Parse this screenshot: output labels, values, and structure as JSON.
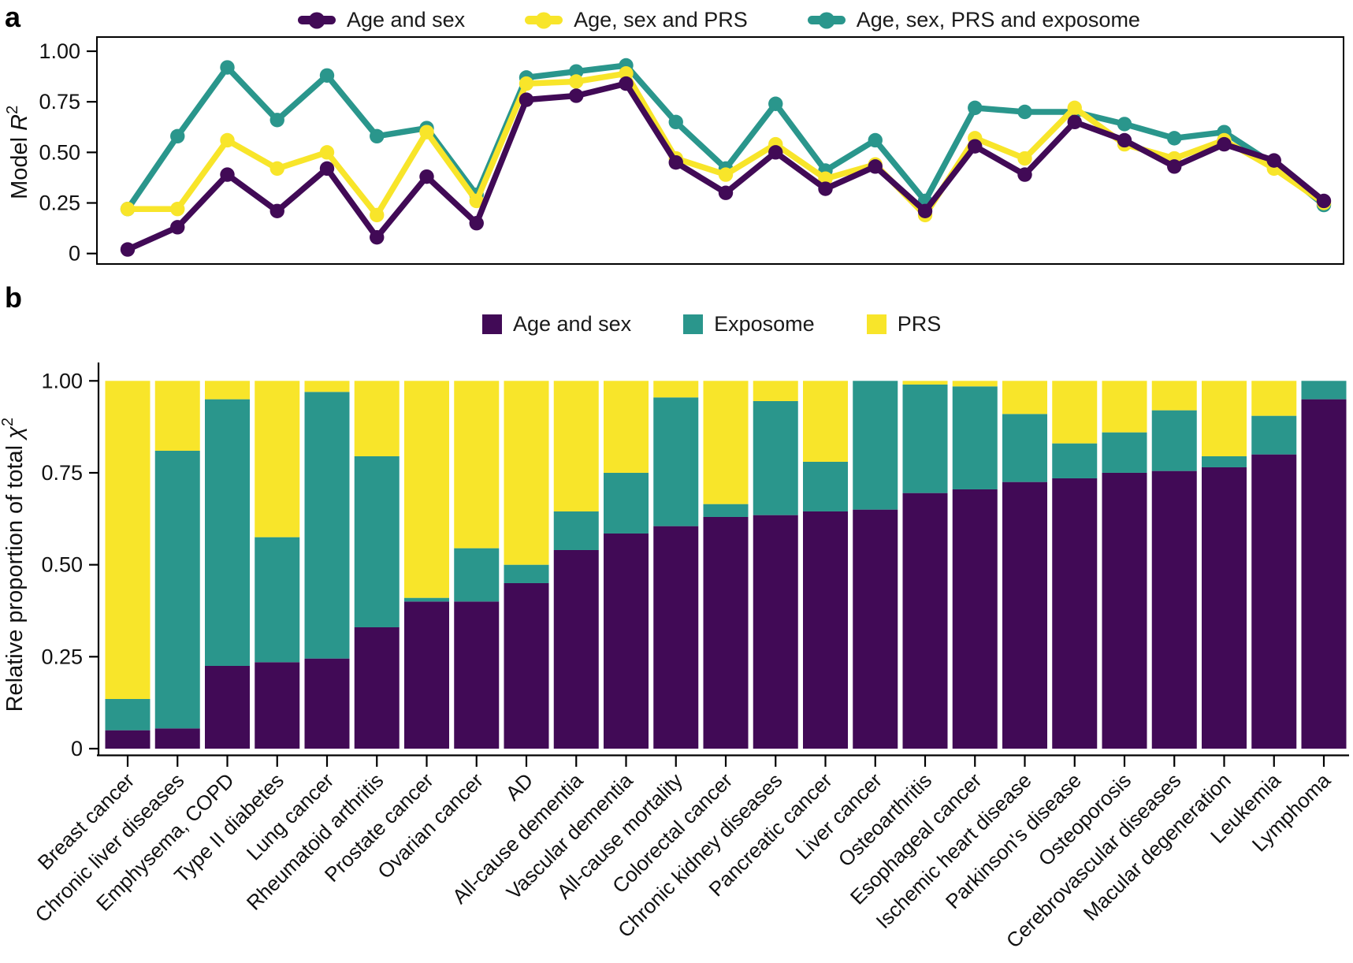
{
  "panels": {
    "a": {
      "letter": "a"
    },
    "b": {
      "letter": "b"
    }
  },
  "colors": {
    "age_sex": "#410a56",
    "exposome": "#2a968c",
    "prs": "#f8e52a",
    "axis": "#000000",
    "text": "#1a1a1a"
  },
  "categories": [
    "Breast cancer",
    "Chronic liver diseases",
    "Emphysema, COPD",
    "Type II diabetes",
    "Lung cancer",
    "Rheumatoid arthritis",
    "Prostate cancer",
    "Ovarian cancer",
    "AD",
    "All-cause dementia",
    "Vascular dementia",
    "All-cause mortality",
    "Colorectal cancer",
    "Chronic kidney diseases",
    "Pancreatic cancer",
    "Liver cancer",
    "Osteoarthritis",
    "Esophageal cancer",
    "Ischemic heart disease",
    "Parkinson's disease",
    "Osteoporosis",
    "Cerebrovascular diseases",
    "Macular degeneration",
    "Leukemia",
    "Lymphoma"
  ],
  "chart_data": [
    {
      "type": "line",
      "title": "",
      "xlabel": "",
      "ylabel": "Model R²",
      "ylim": [
        0,
        1.0
      ],
      "yticks": [
        0,
        0.25,
        0.5,
        0.75,
        1.0
      ],
      "ytick_labels": [
        "0",
        "0.25",
        "0.50",
        "0.75",
        "1.00"
      ],
      "grid": false,
      "legend_position": "top",
      "categories": [
        "Breast cancer",
        "Chronic liver diseases",
        "Emphysema, COPD",
        "Type II diabetes",
        "Lung cancer",
        "Rheumatoid arthritis",
        "Prostate cancer",
        "Ovarian cancer",
        "AD",
        "All-cause dementia",
        "Vascular dementia",
        "All-cause mortality",
        "Colorectal cancer",
        "Chronic kidney diseases",
        "Pancreatic cancer",
        "Liver cancer",
        "Osteoarthritis",
        "Esophageal cancer",
        "Ischemic heart disease",
        "Parkinson's disease",
        "Osteoporosis",
        "Cerebrovascular diseases",
        "Macular degeneration",
        "Leukemia",
        "Lymphoma"
      ],
      "series": [
        {
          "name": "Age and sex",
          "color": "#410a56",
          "values": [
            0.02,
            0.13,
            0.39,
            0.21,
            0.42,
            0.08,
            0.38,
            0.15,
            0.76,
            0.78,
            0.84,
            0.45,
            0.3,
            0.5,
            0.32,
            0.43,
            0.21,
            0.53,
            0.39,
            0.65,
            0.56,
            0.43,
            0.54,
            0.46,
            0.26
          ]
        },
        {
          "name": "Age, sex and PRS",
          "color": "#f8e52a",
          "values": [
            0.22,
            0.22,
            0.56,
            0.42,
            0.5,
            0.19,
            0.6,
            0.26,
            0.84,
            0.85,
            0.89,
            0.47,
            0.39,
            0.54,
            0.37,
            0.44,
            0.19,
            0.57,
            0.47,
            0.72,
            0.54,
            0.47,
            0.56,
            0.42,
            0.25
          ]
        },
        {
          "name": "Age, sex, PRS and exposome",
          "color": "#2a968c",
          "values": [
            0.22,
            0.58,
            0.92,
            0.66,
            0.88,
            0.58,
            0.62,
            0.29,
            0.87,
            0.9,
            0.93,
            0.65,
            0.42,
            0.74,
            0.41,
            0.56,
            0.26,
            0.72,
            0.7,
            0.7,
            0.64,
            0.57,
            0.6,
            0.44,
            0.24
          ]
        }
      ]
    },
    {
      "type": "bar",
      "stacked": true,
      "title": "",
      "xlabel": "",
      "ylabel": "Relative proportion of total χ²",
      "ylim": [
        0,
        1.0
      ],
      "yticks": [
        0,
        0.25,
        0.5,
        0.75,
        1.0
      ],
      "ytick_labels": [
        "0",
        "0.25",
        "0.50",
        "0.75",
        "1.00"
      ],
      "grid": false,
      "legend_position": "top",
      "categories": [
        "Breast cancer",
        "Chronic liver diseases",
        "Emphysema, COPD",
        "Type II diabetes",
        "Lung cancer",
        "Rheumatoid arthritis",
        "Prostate cancer",
        "Ovarian cancer",
        "AD",
        "All-cause dementia",
        "Vascular dementia",
        "All-cause mortality",
        "Colorectal cancer",
        "Chronic kidney diseases",
        "Pancreatic cancer",
        "Liver cancer",
        "Osteoarthritis",
        "Esophageal cancer",
        "Ischemic heart disease",
        "Parkinson's disease",
        "Osteoporosis",
        "Cerebrovascular diseases",
        "Macular degeneration",
        "Leukemia",
        "Lymphoma"
      ],
      "series": [
        {
          "name": "Age and sex",
          "color": "#410a56",
          "values": [
            0.05,
            0.055,
            0.225,
            0.235,
            0.245,
            0.33,
            0.4,
            0.4,
            0.45,
            0.54,
            0.585,
            0.605,
            0.63,
            0.635,
            0.645,
            0.65,
            0.695,
            0.705,
            0.725,
            0.735,
            0.75,
            0.755,
            0.765,
            0.8,
            0.95
          ]
        },
        {
          "name": "Exposome",
          "color": "#2a968c",
          "values": [
            0.085,
            0.755,
            0.725,
            0.34,
            0.725,
            0.465,
            0.01,
            0.145,
            0.05,
            0.105,
            0.165,
            0.35,
            0.035,
            0.31,
            0.135,
            0.35,
            0.295,
            0.28,
            0.185,
            0.095,
            0.11,
            0.165,
            0.03,
            0.105,
            0.05
          ]
        },
        {
          "name": "PRS",
          "color": "#f8e52a",
          "values": [
            0.865,
            0.19,
            0.05,
            0.425,
            0.03,
            0.205,
            0.59,
            0.455,
            0.5,
            0.355,
            0.25,
            0.045,
            0.335,
            0.055,
            0.22,
            0,
            0.01,
            0.015,
            0.09,
            0.17,
            0.14,
            0.08,
            0.205,
            0.095,
            0
          ]
        }
      ]
    }
  ]
}
